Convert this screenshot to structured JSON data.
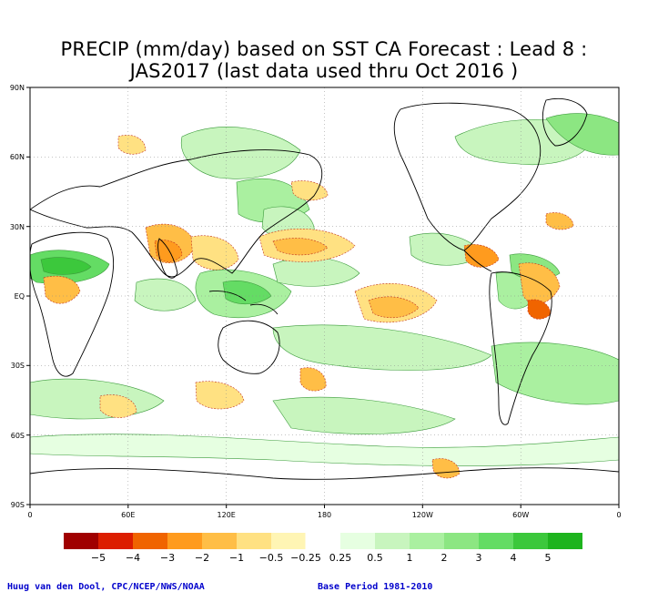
{
  "title": {
    "line1": "PRECIP (mm/day) based on SST CA Forecast : Lead 8 :",
    "line2": "JAS2017 (last data used thru Oct 2016 )"
  },
  "axes": {
    "lat_labels": [
      "90N",
      "60N",
      "30N",
      "EQ",
      "30S",
      "60S",
      "90S"
    ],
    "lon_labels": [
      "0",
      "60E",
      "120E",
      "180",
      "120W",
      "60W",
      "0"
    ]
  },
  "legend": {
    "colors": [
      "#a00000",
      "#dc1e00",
      "#f06400",
      "#ff9b1e",
      "#ffbe46",
      "#ffe182",
      "#fff5b4",
      "#ffffff",
      "#e6ffe1",
      "#c8f5be",
      "#aaf0a0",
      "#8ce682",
      "#64dc64",
      "#3cc83c",
      "#1eb41e"
    ],
    "labels": [
      "−5",
      "−4",
      "−3",
      "−2",
      "−1",
      "−0.5",
      "−0.25",
      "0.25",
      "0.5",
      "1",
      "2",
      "3",
      "4",
      "5"
    ]
  },
  "footer": {
    "credit": "Huug van den Dool, CPC/NCEP/NWS/NOAA",
    "base_period": "Base Period 1981-2010"
  }
}
